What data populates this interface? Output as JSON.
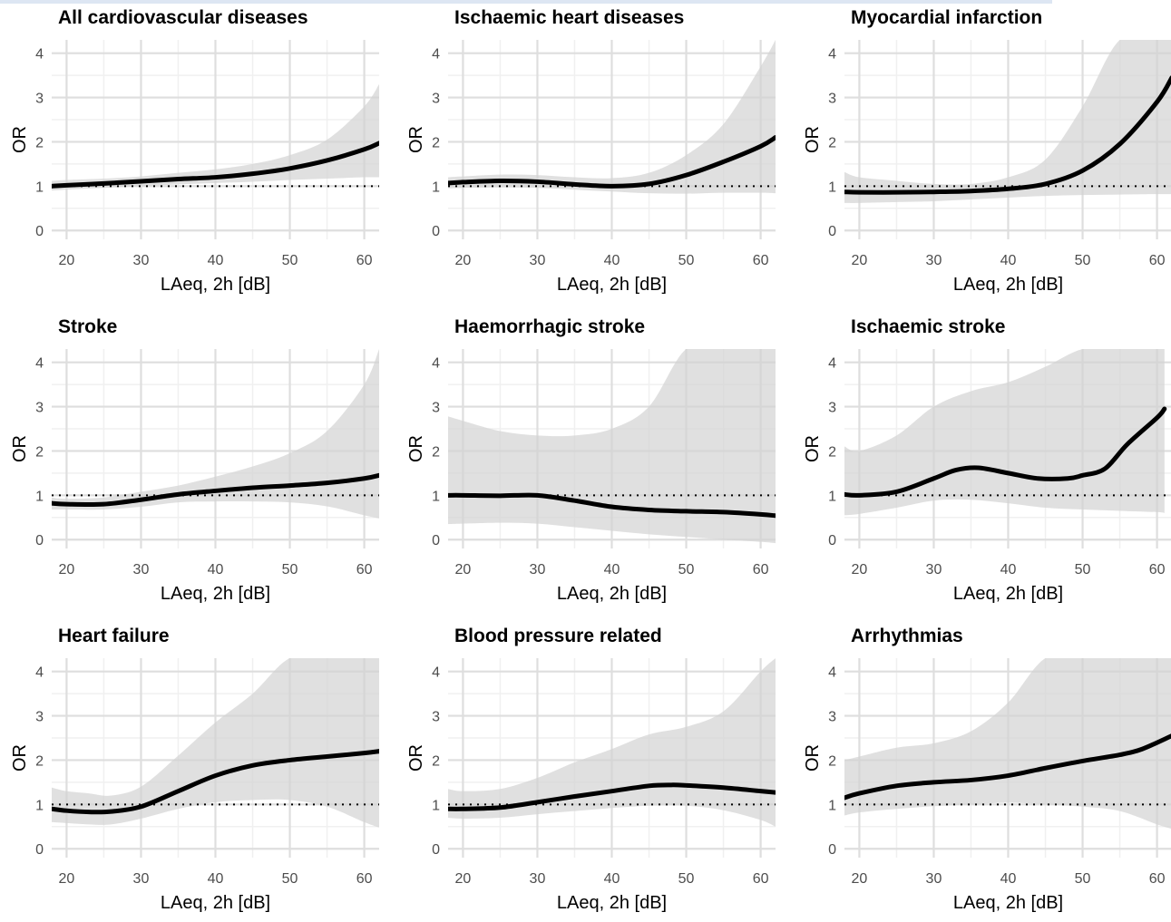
{
  "chart_data": [
    {
      "type": "line",
      "title": "All cardiovascular diseases",
      "xlabel": "LAeq, 2h [dB]",
      "ylabel": "OR",
      "xlim": [
        18,
        62
      ],
      "ylim": [
        -0.2,
        4.3
      ],
      "xticks": [
        20,
        30,
        40,
        50,
        60
      ],
      "yticks": [
        0,
        1,
        2,
        3,
        4
      ],
      "reference_y": 1,
      "series": [
        {
          "role": "estimate",
          "x": [
            18,
            20,
            25,
            30,
            35,
            40,
            45,
            50,
            55,
            60,
            62
          ],
          "y": [
            1.0,
            1.02,
            1.06,
            1.11,
            1.16,
            1.2,
            1.28,
            1.4,
            1.58,
            1.83,
            1.97
          ]
        },
        {
          "role": "ci_upper",
          "x": [
            18,
            20,
            25,
            30,
            35,
            40,
            45,
            50,
            55,
            60,
            62
          ],
          "y": [
            1.12,
            1.14,
            1.17,
            1.22,
            1.3,
            1.38,
            1.5,
            1.7,
            2.05,
            2.8,
            3.3
          ]
        },
        {
          "role": "ci_lower",
          "x": [
            18,
            20,
            25,
            30,
            35,
            40,
            45,
            50,
            55,
            60,
            62
          ],
          "y": [
            0.9,
            0.92,
            0.96,
            1.0,
            1.04,
            1.07,
            1.1,
            1.14,
            1.17,
            1.2,
            1.2
          ]
        }
      ]
    },
    {
      "type": "line",
      "title": "Ischaemic heart diseases",
      "xlabel": "LAeq, 2h [dB]",
      "ylabel": "OR",
      "xlim": [
        18,
        62
      ],
      "ylim": [
        -0.2,
        4.3
      ],
      "xticks": [
        20,
        30,
        40,
        50,
        60
      ],
      "yticks": [
        0,
        1,
        2,
        3,
        4
      ],
      "reference_y": 1,
      "series": [
        {
          "role": "estimate",
          "x": [
            18,
            20,
            25,
            30,
            35,
            40,
            45,
            50,
            55,
            60,
            62
          ],
          "y": [
            1.07,
            1.09,
            1.12,
            1.1,
            1.04,
            1.0,
            1.05,
            1.25,
            1.55,
            1.9,
            2.1
          ]
        },
        {
          "role": "ci_upper",
          "x": [
            18,
            20,
            25,
            30,
            35,
            40,
            45,
            50,
            55,
            60,
            62
          ],
          "y": [
            1.2,
            1.22,
            1.26,
            1.25,
            1.2,
            1.18,
            1.3,
            1.7,
            2.4,
            3.7,
            4.3
          ]
        },
        {
          "role": "ci_lower",
          "x": [
            18,
            20,
            25,
            30,
            35,
            40,
            45,
            50,
            55,
            60,
            62
          ],
          "y": [
            0.95,
            0.96,
            0.97,
            0.96,
            0.92,
            0.88,
            0.84,
            0.83,
            0.85,
            0.85,
            0.84
          ]
        }
      ]
    },
    {
      "type": "line",
      "title": "Myocardial infarction",
      "xlabel": "LAeq, 2h [dB]",
      "ylabel": "OR",
      "xlim": [
        18,
        62
      ],
      "ylim": [
        -0.2,
        4.3
      ],
      "xticks": [
        20,
        30,
        40,
        50,
        60
      ],
      "yticks": [
        0,
        1,
        2,
        3,
        4
      ],
      "reference_y": 1,
      "series": [
        {
          "role": "estimate",
          "x": [
            18,
            20,
            25,
            30,
            35,
            40,
            45,
            50,
            55,
            60,
            62
          ],
          "y": [
            0.87,
            0.86,
            0.86,
            0.87,
            0.89,
            0.94,
            1.05,
            1.35,
            1.95,
            2.9,
            3.45
          ]
        },
        {
          "role": "ci_upper",
          "x": [
            18,
            20,
            25,
            30,
            35,
            40,
            45,
            50,
            55,
            60,
            62
          ],
          "y": [
            1.32,
            1.2,
            1.12,
            1.05,
            1.05,
            1.2,
            1.6,
            2.8,
            4.3,
            4.3,
            4.3
          ]
        },
        {
          "role": "ci_lower",
          "x": [
            18,
            20,
            25,
            30,
            35,
            40,
            45,
            50,
            55,
            60,
            62
          ],
          "y": [
            0.62,
            0.62,
            0.64,
            0.66,
            0.7,
            0.74,
            0.78,
            0.8,
            0.81,
            0.82,
            0.82
          ]
        }
      ]
    },
    {
      "type": "line",
      "title": "Stroke",
      "xlabel": "LAeq, 2h [dB]",
      "ylabel": "OR",
      "xlim": [
        18,
        62
      ],
      "ylim": [
        -0.2,
        4.3
      ],
      "xticks": [
        20,
        30,
        40,
        50,
        60
      ],
      "yticks": [
        0,
        1,
        2,
        3,
        4
      ],
      "reference_y": 1,
      "series": [
        {
          "role": "estimate",
          "x": [
            18,
            20,
            25,
            30,
            35,
            40,
            45,
            50,
            55,
            60,
            62
          ],
          "y": [
            0.82,
            0.8,
            0.8,
            0.9,
            1.02,
            1.1,
            1.17,
            1.22,
            1.28,
            1.38,
            1.45
          ]
        },
        {
          "role": "ci_upper",
          "x": [
            18,
            20,
            25,
            30,
            35,
            40,
            45,
            50,
            55,
            60,
            62
          ],
          "y": [
            0.95,
            0.92,
            0.95,
            1.08,
            1.22,
            1.42,
            1.65,
            1.95,
            2.45,
            3.5,
            4.3
          ]
        },
        {
          "role": "ci_lower",
          "x": [
            18,
            20,
            25,
            30,
            35,
            40,
            45,
            50,
            55,
            60,
            62
          ],
          "y": [
            0.68,
            0.68,
            0.68,
            0.74,
            0.84,
            0.86,
            0.86,
            0.84,
            0.75,
            0.55,
            0.48
          ]
        }
      ]
    },
    {
      "type": "line",
      "title": "Haemorrhagic stroke",
      "xlabel": "LAeq, 2h [dB]",
      "ylabel": "OR",
      "xlim": [
        18,
        62
      ],
      "ylim": [
        -0.2,
        4.3
      ],
      "xticks": [
        20,
        30,
        40,
        50,
        60
      ],
      "yticks": [
        0,
        1,
        2,
        3,
        4
      ],
      "reference_y": 1,
      "series": [
        {
          "role": "estimate",
          "x": [
            18,
            20,
            25,
            30,
            35,
            40,
            45,
            50,
            55,
            60,
            62
          ],
          "y": [
            1.0,
            1.0,
            0.99,
            1.0,
            0.88,
            0.74,
            0.67,
            0.64,
            0.62,
            0.57,
            0.54
          ]
        },
        {
          "role": "ci_upper",
          "x": [
            18,
            20,
            25,
            30,
            35,
            40,
            45,
            50,
            55,
            60,
            62
          ],
          "y": [
            2.78,
            2.68,
            2.45,
            2.35,
            2.35,
            2.5,
            3.0,
            4.3,
            4.3,
            4.3,
            4.3
          ]
        },
        {
          "role": "ci_lower",
          "x": [
            18,
            20,
            25,
            30,
            35,
            40,
            45,
            50,
            55,
            60,
            62
          ],
          "y": [
            0.35,
            0.36,
            0.38,
            0.36,
            0.28,
            0.2,
            0.12,
            0.06,
            0.0,
            -0.05,
            -0.08
          ]
        }
      ]
    },
    {
      "type": "line",
      "title": "Ischaemic stroke",
      "xlabel": "LAeq, 2h [dB]",
      "ylabel": "OR",
      "xlim": [
        18,
        62
      ],
      "ylim": [
        -0.2,
        4.3
      ],
      "xticks": [
        20,
        30,
        40,
        50,
        60
      ],
      "yticks": [
        0,
        1,
        2,
        3,
        4
      ],
      "reference_y": 1,
      "series": [
        {
          "role": "estimate",
          "x": [
            18,
            20,
            25,
            30,
            33,
            36,
            40,
            44,
            48,
            50,
            53,
            56,
            60,
            61
          ],
          "y": [
            1.02,
            1.0,
            1.08,
            1.38,
            1.57,
            1.62,
            1.5,
            1.38,
            1.38,
            1.45,
            1.6,
            2.15,
            2.75,
            2.95
          ]
        },
        {
          "role": "ci_upper",
          "x": [
            18,
            20,
            25,
            30,
            35,
            40,
            45,
            50,
            55,
            60,
            61
          ],
          "y": [
            2.1,
            2.0,
            2.35,
            3.0,
            3.35,
            3.55,
            3.9,
            4.3,
            4.3,
            4.3,
            4.3
          ]
        },
        {
          "role": "ci_lower",
          "x": [
            18,
            20,
            25,
            30,
            35,
            40,
            45,
            50,
            55,
            60,
            61
          ],
          "y": [
            0.55,
            0.58,
            0.72,
            0.88,
            0.9,
            0.82,
            0.72,
            0.68,
            0.65,
            0.62,
            0.6
          ]
        }
      ]
    },
    {
      "type": "line",
      "title": "Heart failure",
      "xlabel": "LAeq, 2h [dB]",
      "ylabel": "OR",
      "xlim": [
        18,
        62
      ],
      "ylim": [
        -0.2,
        4.3
      ],
      "xticks": [
        20,
        30,
        40,
        50,
        60
      ],
      "yticks": [
        0,
        1,
        2,
        3,
        4
      ],
      "reference_y": 1,
      "series": [
        {
          "role": "estimate",
          "x": [
            18,
            20,
            23,
            26,
            30,
            35,
            40,
            45,
            50,
            55,
            60,
            62
          ],
          "y": [
            0.9,
            0.86,
            0.83,
            0.84,
            0.95,
            1.3,
            1.65,
            1.88,
            2.0,
            2.08,
            2.16,
            2.2
          ]
        },
        {
          "role": "ci_upper",
          "x": [
            18,
            20,
            23,
            26,
            30,
            35,
            40,
            45,
            50,
            55,
            60,
            62
          ],
          "y": [
            1.38,
            1.3,
            1.25,
            1.2,
            1.4,
            2.1,
            2.85,
            3.5,
            4.3,
            4.3,
            4.3,
            4.3
          ]
        },
        {
          "role": "ci_lower",
          "x": [
            18,
            20,
            23,
            26,
            30,
            35,
            40,
            45,
            50,
            55,
            60,
            62
          ],
          "y": [
            0.6,
            0.58,
            0.55,
            0.55,
            0.68,
            0.9,
            1.05,
            1.1,
            1.1,
            0.95,
            0.6,
            0.48
          ]
        }
      ]
    },
    {
      "type": "line",
      "title": "Blood pressure related",
      "xlabel": "LAeq, 2h [dB]",
      "ylabel": "OR",
      "xlim": [
        18,
        62
      ],
      "ylim": [
        -0.2,
        4.3
      ],
      "xticks": [
        20,
        30,
        40,
        50,
        60
      ],
      "yticks": [
        0,
        1,
        2,
        3,
        4
      ],
      "reference_y": 1,
      "series": [
        {
          "role": "estimate",
          "x": [
            18,
            20,
            25,
            30,
            35,
            40,
            45,
            48,
            50,
            55,
            60,
            62
          ],
          "y": [
            0.9,
            0.9,
            0.93,
            1.05,
            1.18,
            1.3,
            1.42,
            1.44,
            1.43,
            1.38,
            1.3,
            1.27
          ]
        },
        {
          "role": "ci_upper",
          "x": [
            18,
            20,
            25,
            30,
            35,
            40,
            45,
            50,
            55,
            60,
            62
          ],
          "y": [
            1.35,
            1.3,
            1.35,
            1.6,
            1.95,
            2.25,
            2.58,
            2.75,
            3.1,
            4.0,
            4.3
          ]
        },
        {
          "role": "ci_lower",
          "x": [
            18,
            20,
            25,
            30,
            35,
            40,
            45,
            50,
            55,
            60,
            62
          ],
          "y": [
            0.7,
            0.68,
            0.7,
            0.78,
            0.85,
            0.92,
            0.97,
            0.97,
            0.87,
            0.65,
            0.5
          ]
        }
      ]
    },
    {
      "type": "line",
      "title": "Arrhythmias",
      "xlabel": "LAeq, 2h [dB]",
      "ylabel": "OR",
      "xlim": [
        18,
        62
      ],
      "ylim": [
        -0.2,
        4.3
      ],
      "xticks": [
        20,
        30,
        40,
        50,
        60
      ],
      "yticks": [
        0,
        1,
        2,
        3,
        4
      ],
      "reference_y": 1,
      "series": [
        {
          "role": "estimate",
          "x": [
            18,
            20,
            25,
            30,
            35,
            40,
            45,
            50,
            55,
            58,
            62
          ],
          "y": [
            1.15,
            1.25,
            1.42,
            1.5,
            1.55,
            1.65,
            1.82,
            1.98,
            2.12,
            2.25,
            2.55
          ]
        },
        {
          "role": "ci_upper",
          "x": [
            18,
            20,
            25,
            30,
            35,
            40,
            45,
            50,
            55,
            60,
            62
          ],
          "y": [
            2.0,
            2.08,
            2.28,
            2.38,
            2.65,
            3.3,
            4.3,
            4.3,
            4.3,
            4.3,
            4.3
          ]
        },
        {
          "role": "ci_lower",
          "x": [
            18,
            20,
            25,
            30,
            35,
            40,
            45,
            50,
            55,
            60,
            62
          ],
          "y": [
            0.75,
            0.82,
            0.9,
            0.96,
            1.0,
            1.04,
            1.0,
            0.95,
            0.85,
            0.55,
            0.45
          ]
        }
      ]
    }
  ]
}
